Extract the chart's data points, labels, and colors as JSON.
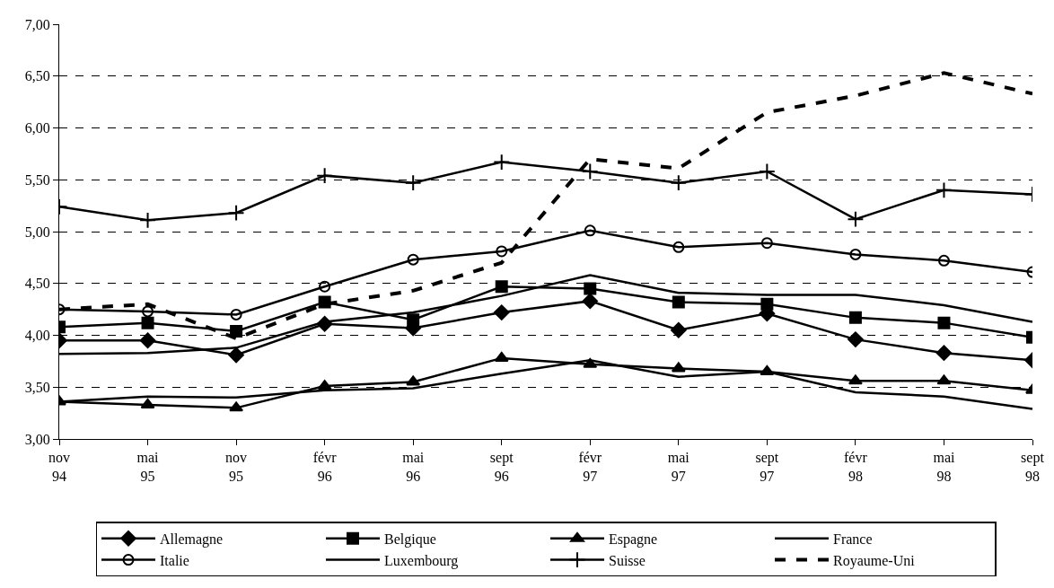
{
  "chart_data": {
    "type": "line",
    "categories": [
      "nov\n94",
      "mai\n95",
      "nov\n95",
      "févr\n96",
      "mai\n96",
      "sept\n96",
      "févr\n97",
      "mai\n97",
      "sept\n97",
      "févr\n98",
      "mai\n98",
      "sept\n98"
    ],
    "series": [
      {
        "name": "Allemagne",
        "color": "#000000",
        "marker": "diamond",
        "values": [
          3.95,
          3.95,
          3.81,
          4.11,
          4.07,
          4.22,
          4.33,
          4.05,
          4.21,
          3.96,
          3.83,
          3.76
        ]
      },
      {
        "name": "Belgique",
        "color": "#000000",
        "marker": "square",
        "values": [
          4.08,
          4.12,
          4.04,
          4.32,
          4.15,
          4.47,
          4.45,
          4.32,
          4.3,
          4.17,
          4.12,
          3.98
        ]
      },
      {
        "name": "Espagne",
        "color": "#000000",
        "marker": "triangle",
        "values": [
          3.36,
          3.33,
          3.3,
          3.51,
          3.55,
          3.78,
          3.72,
          3.68,
          3.65,
          3.56,
          3.56,
          3.47
        ]
      },
      {
        "name": "France",
        "color": "#000000",
        "marker": "none",
        "values": [
          3.82,
          3.83,
          3.88,
          4.13,
          4.22,
          4.38,
          4.58,
          4.41,
          4.39,
          4.39,
          4.29,
          4.13
        ]
      },
      {
        "name": "Italie",
        "color": "#000000",
        "marker": "circle",
        "values": [
          4.25,
          4.23,
          4.2,
          4.47,
          4.73,
          4.81,
          5.01,
          4.85,
          4.89,
          4.78,
          4.72,
          4.61
        ]
      },
      {
        "name": "Luxembourg",
        "color": "#000000",
        "marker": "none",
        "values": [
          3.36,
          3.41,
          3.4,
          3.47,
          3.49,
          3.63,
          3.76,
          3.6,
          3.65,
          3.45,
          3.41,
          3.29
        ]
      },
      {
        "name": "Suisse",
        "color": "#000000",
        "marker": "cross",
        "values": [
          5.24,
          5.11,
          5.18,
          5.54,
          5.47,
          5.67,
          5.58,
          5.47,
          5.58,
          5.12,
          5.4,
          5.36
        ]
      },
      {
        "name": "Royaume-Uni",
        "color": "#000000",
        "marker": "none",
        "line_style": "dashed",
        "values": [
          4.25,
          4.3,
          3.97,
          4.3,
          4.43,
          4.7,
          5.7,
          5.61,
          6.15,
          6.31,
          6.53,
          6.33
        ]
      }
    ],
    "ylim": [
      3,
      7
    ],
    "yticks": [
      {
        "value": 3,
        "label": "3,00"
      },
      {
        "value": 3.5,
        "label": "3,50"
      },
      {
        "value": 4,
        "label": "4,00"
      },
      {
        "value": 4.5,
        "label": "4,50"
      },
      {
        "value": 5,
        "label": "5,00"
      },
      {
        "value": 5.5,
        "label": "5,50"
      },
      {
        "value": 6,
        "label": "6,00"
      },
      {
        "value": 6.5,
        "label": "6,50"
      },
      {
        "value": 7,
        "label": "7,00"
      }
    ],
    "grid": "y",
    "legend": "bottom",
    "line_style": "solid"
  }
}
